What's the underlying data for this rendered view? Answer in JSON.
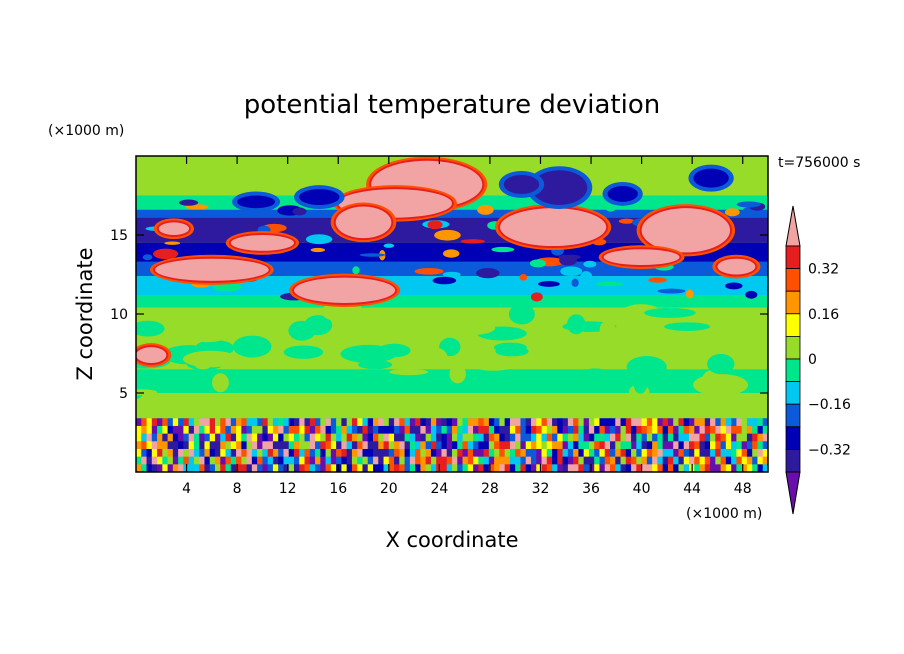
{
  "chart_data": {
    "type": "heatmap",
    "title": "potential temperature deviation",
    "time_label": "t=756000 s",
    "xlabel": "X coordinate",
    "ylabel": "Z coordinate",
    "x_unit": "(×1000 m)",
    "y_unit": "(×1000 m)",
    "xlim": [
      0,
      50
    ],
    "ylim": [
      0,
      20
    ],
    "x_ticks": [
      4,
      8,
      12,
      16,
      20,
      24,
      28,
      32,
      36,
      40,
      44,
      48
    ],
    "y_ticks": [
      5,
      10,
      15
    ],
    "colorbar": {
      "levels": [
        -0.4,
        -0.32,
        -0.24,
        -0.16,
        -0.08,
        0,
        0.08,
        0.16,
        0.24,
        0.32,
        0.4
      ],
      "labels": [
        "0.32",
        "0.16",
        "0",
        "−0.16",
        "−0.32"
      ],
      "label_values": [
        0.32,
        0.16,
        0,
        -0.16,
        -0.32
      ],
      "colors": [
        "#6a0dad",
        "#2e1a9e",
        "#0000b4",
        "#0a5ad9",
        "#00c8f0",
        "#00e68c",
        "#96dc28",
        "#ffff00",
        "#ff9600",
        "#ff5000",
        "#e61e1e",
        "#f2a3a3"
      ]
    },
    "bands": [
      {
        "z": [
          19.9,
          17.5
        ],
        "level": 6
      },
      {
        "z": [
          17.5,
          16.6
        ],
        "level": 5
      },
      {
        "z": [
          16.6,
          16.1
        ],
        "level": 3
      },
      {
        "z": [
          16.1,
          14.5
        ],
        "level": 1
      },
      {
        "z": [
          14.5,
          13.3
        ],
        "level": 2
      },
      {
        "z": [
          13.3,
          12.4
        ],
        "level": 3
      },
      {
        "z": [
          12.4,
          11.2
        ],
        "level": 4
      },
      {
        "z": [
          11.2,
          10.4
        ],
        "level": 5
      },
      {
        "z": [
          10.4,
          6.5
        ],
        "level": 6
      },
      {
        "z": [
          6.5,
          5.0
        ],
        "level": 5
      },
      {
        "z": [
          5.0,
          3.4
        ],
        "level": 6
      },
      {
        "z": [
          3.4,
          0.0
        ],
        "level": 5
      }
    ],
    "features": [
      {
        "cx": 23.0,
        "cz": 18.2,
        "rx": 4.4,
        "rz": 1.5,
        "level": 11
      },
      {
        "cx": 20.5,
        "cz": 17.0,
        "rx": 4.5,
        "rz": 0.9,
        "level": 11
      },
      {
        "cx": 18.0,
        "cz": 15.8,
        "rx": 2.2,
        "rz": 1.0,
        "level": 11
      },
      {
        "cx": 10.0,
        "cz": 14.5,
        "rx": 2.5,
        "rz": 0.5,
        "level": 11
      },
      {
        "cx": 6.0,
        "cz": 12.8,
        "rx": 4.5,
        "rz": 0.7,
        "level": 11
      },
      {
        "cx": 16.5,
        "cz": 11.5,
        "rx": 4.0,
        "rz": 0.8,
        "level": 11
      },
      {
        "cx": 33.0,
        "cz": 15.5,
        "rx": 4.2,
        "rz": 1.2,
        "level": 11
      },
      {
        "cx": 43.5,
        "cz": 15.3,
        "rx": 3.5,
        "rz": 1.4,
        "level": 11
      },
      {
        "cx": 40.0,
        "cz": 13.6,
        "rx": 3.0,
        "rz": 0.5,
        "level": 11
      },
      {
        "cx": 47.5,
        "cz": 13.0,
        "rx": 1.5,
        "rz": 0.5,
        "level": 11
      },
      {
        "cx": 33.5,
        "cz": 18.0,
        "rx": 2.2,
        "rz": 1.1,
        "level": 1
      },
      {
        "cx": 30.5,
        "cz": 18.2,
        "rx": 1.4,
        "rz": 0.6,
        "level": 1
      },
      {
        "cx": 14.5,
        "cz": 17.4,
        "rx": 1.6,
        "rz": 0.5,
        "level": 2
      },
      {
        "cx": 9.5,
        "cz": 17.1,
        "rx": 1.5,
        "rz": 0.4,
        "level": 2
      },
      {
        "cx": 45.5,
        "cz": 18.6,
        "rx": 1.4,
        "rz": 0.6,
        "level": 2
      },
      {
        "cx": 38.5,
        "cz": 17.6,
        "rx": 1.2,
        "rz": 0.5,
        "level": 2
      },
      {
        "cx": 3.0,
        "cz": 15.4,
        "rx": 1.2,
        "rz": 0.4,
        "level": 11
      },
      {
        "cx": 1.2,
        "cz": 7.4,
        "rx": 1.2,
        "rz": 0.5,
        "level": 11
      }
    ],
    "boundary_layer": {
      "z_top": 3.4,
      "columns": 120,
      "rows": 7,
      "seed": 7
    }
  }
}
